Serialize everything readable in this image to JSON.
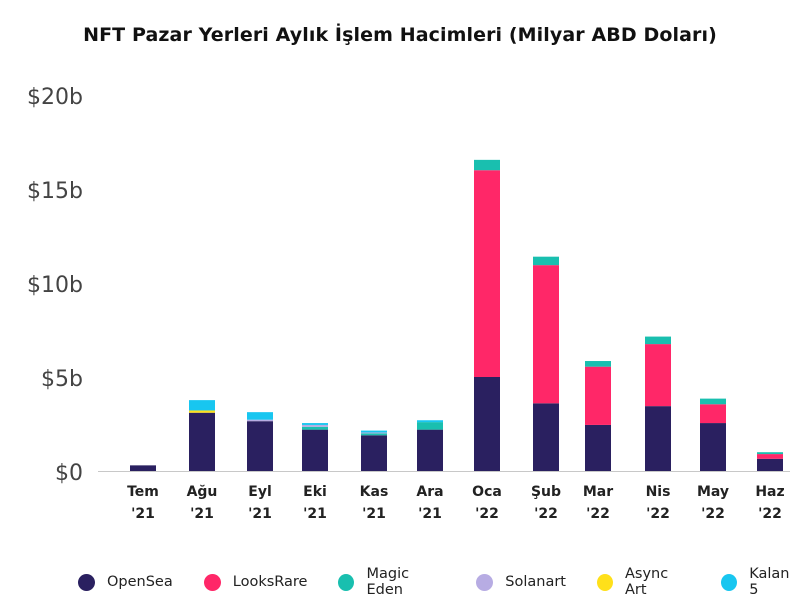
{
  "chart_data": {
    "type": "bar",
    "stacked": true,
    "title": "NFT Pazar Yerleri Aylık İşlem Hacimleri (Milyar ABD Doları)",
    "xlabel": "",
    "ylabel": "",
    "ylim": [
      0,
      20
    ],
    "yticks": [
      {
        "value": 0,
        "label": "$0"
      },
      {
        "value": 5,
        "label": "$5b"
      },
      {
        "value": 10,
        "label": "$10b"
      },
      {
        "value": 15,
        "label": "$15b"
      },
      {
        "value": 20,
        "label": "$20b"
      }
    ],
    "categories": [
      {
        "month": "Tem",
        "year": "'21"
      },
      {
        "month": "Ağu",
        "year": "'21"
      },
      {
        "month": "Eyl",
        "year": "'21"
      },
      {
        "month": "Eki",
        "year": "'21"
      },
      {
        "month": "Kas",
        "year": "'21"
      },
      {
        "month": "Ara",
        "year": "'21"
      },
      {
        "month": "Oca",
        "year": "'22"
      },
      {
        "month": "Şub",
        "year": "'22"
      },
      {
        "month": "Mar",
        "year": "'22"
      },
      {
        "month": "Nis",
        "year": "'22"
      },
      {
        "month": "May",
        "year": "'22"
      },
      {
        "month": "Haz",
        "year": "'22"
      }
    ],
    "series": [
      {
        "name": "OpenSea",
        "color": "#2a2060",
        "values": [
          0.3,
          3.1,
          2.65,
          2.2,
          1.9,
          2.2,
          5.0,
          3.6,
          2.45,
          3.45,
          2.55,
          0.65
        ]
      },
      {
        "name": "LooksRare",
        "color": "#ff2768",
        "values": [
          0,
          0,
          0,
          0,
          0,
          0,
          11.0,
          7.35,
          3.1,
          3.3,
          1.0,
          0.25
        ]
      },
      {
        "name": "Magic Eden",
        "color": "#19bfaf",
        "values": [
          0,
          0,
          0,
          0.15,
          0.1,
          0.4,
          0.55,
          0.45,
          0.3,
          0.4,
          0.3,
          0.1
        ]
      },
      {
        "name": "Solanart",
        "color": "#b7ace3",
        "values": [
          0,
          0,
          0.08,
          0.1,
          0.05,
          0,
          0,
          0,
          0,
          0,
          0,
          0
        ]
      },
      {
        "name": "Async Art",
        "color": "#ffe01a",
        "values": [
          0,
          0.12,
          0,
          0,
          0,
          0,
          0,
          0,
          0,
          0,
          0,
          0
        ]
      },
      {
        "name": "Kalan 5",
        "color": "#18c6f0",
        "values": [
          0,
          0.55,
          0.4,
          0.1,
          0.1,
          0.1,
          0,
          0,
          0,
          0,
          0,
          0
        ]
      }
    ],
    "legend_position": "bottom",
    "grid": false
  }
}
